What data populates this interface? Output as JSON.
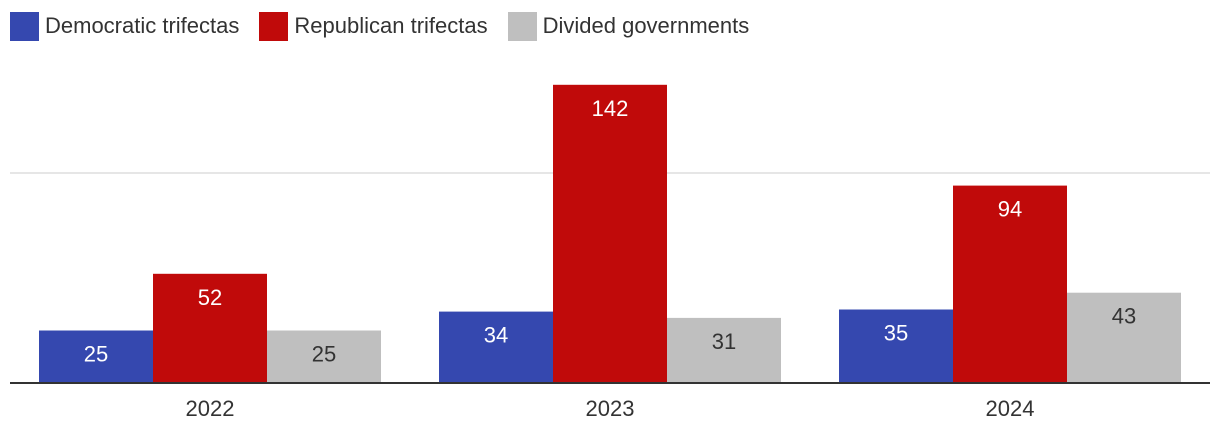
{
  "chart_data": {
    "type": "bar",
    "categories": [
      "2022",
      "2023",
      "2024"
    ],
    "series": [
      {
        "name": "Democratic trifectas",
        "color": "#3548af",
        "label_color": "#ffffff",
        "values": [
          25,
          34,
          35
        ]
      },
      {
        "name": "Republican trifectas",
        "color": "#c00a0a",
        "label_color": "#ffffff",
        "values": [
          52,
          142,
          94
        ]
      },
      {
        "name": "Divided governments",
        "color": "#bfbfbf",
        "label_color": "#333333",
        "values": [
          25,
          31,
          43
        ]
      }
    ],
    "ylim": [
      0,
      150
    ],
    "gridlines": [
      100
    ],
    "legend_position": "top-left",
    "title": "",
    "xlabel": "",
    "ylabel": ""
  }
}
